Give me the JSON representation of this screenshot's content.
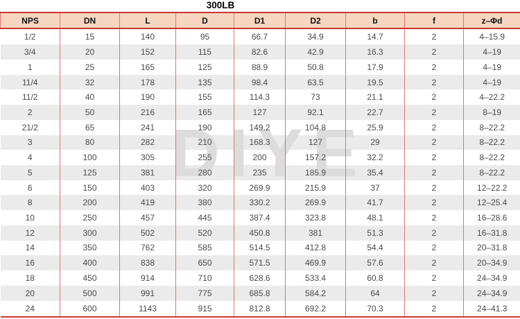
{
  "title": "300LB",
  "watermark": "DIYE",
  "colors": {
    "header_bg": "#f6d6c1",
    "line_strong": "#c9372e",
    "line_light": "#e2716d",
    "stripe": "#ebebeb",
    "body_text": "#4a4a4a",
    "header_text": "#111111",
    "watermark_color": "#dcdcdc"
  },
  "table": {
    "columns": [
      "NPS",
      "DN",
      "L",
      "D",
      "D1",
      "D2",
      "b",
      "f",
      "z–Φd"
    ],
    "rows": [
      [
        "1/2",
        "15",
        "140",
        "95",
        "66.7",
        "34.9",
        "14.7",
        "2",
        "4–15.9"
      ],
      [
        "3/4",
        "20",
        "152",
        "115",
        "82.6",
        "42.9",
        "16.3",
        "2",
        "4–19"
      ],
      [
        "1",
        "25",
        "165",
        "125",
        "88.9",
        "50.8",
        "17.9",
        "2",
        "4–19"
      ],
      [
        "11/4",
        "32",
        "178",
        "135",
        "98.4",
        "63.5",
        "19.5",
        "2",
        "4–19"
      ],
      [
        "11/2",
        "40",
        "190",
        "155",
        "114.3",
        "73",
        "21.1",
        "2",
        "4–22.2"
      ],
      [
        "2",
        "50",
        "216",
        "165",
        "127",
        "92.1",
        "22.7",
        "2",
        "8–19"
      ],
      [
        "21/2",
        "65",
        "241",
        "190",
        "149.2",
        "104.8",
        "25.9",
        "2",
        "8–22.2"
      ],
      [
        "3",
        "80",
        "282",
        "210",
        "168.3",
        "127",
        "29",
        "2",
        "8–22.2"
      ],
      [
        "4",
        "100",
        "305",
        "255",
        "200",
        "157.2",
        "32.2",
        "2",
        "8–22.2"
      ],
      [
        "5",
        "125",
        "381",
        "280",
        "235",
        "185.9",
        "35.4",
        "2",
        "8–22.2"
      ],
      [
        "6",
        "150",
        "403",
        "320",
        "269.9",
        "215.9",
        "37",
        "2",
        "12–22.2"
      ],
      [
        "8",
        "200",
        "419",
        "380",
        "330.2",
        "269.9",
        "41.7",
        "2",
        "12–25.4"
      ],
      [
        "10",
        "250",
        "457",
        "445",
        "387.4",
        "323.8",
        "48.1",
        "2",
        "16–28.6"
      ],
      [
        "12",
        "300",
        "502",
        "520",
        "450.8",
        "381",
        "51.3",
        "2",
        "16–31.8"
      ],
      [
        "14",
        "350",
        "762",
        "585",
        "514.5",
        "412.8",
        "54.4",
        "2",
        "20–31.8"
      ],
      [
        "16",
        "400",
        "838",
        "650",
        "571.5",
        "469.9",
        "57.6",
        "2",
        "20–34.9"
      ],
      [
        "18",
        "450",
        "914",
        "710",
        "628.6",
        "533.4",
        "60.8",
        "2",
        "24–34.9"
      ],
      [
        "20",
        "500",
        "991",
        "775",
        "685.8",
        "584.2",
        "64",
        "2",
        "24–34.9"
      ],
      [
        "24",
        "600",
        "1143",
        "915",
        "812.8",
        "692.2",
        "70.3",
        "2",
        "24–41.3"
      ]
    ]
  }
}
